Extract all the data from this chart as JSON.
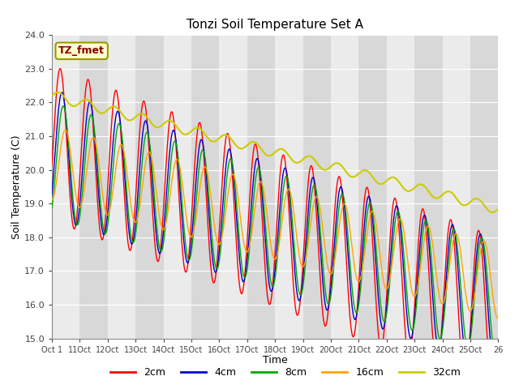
{
  "title": "Tonzi Soil Temperature Set A",
  "xlabel": "Time",
  "ylabel": "Soil Temperature (C)",
  "ylim": [
    15.0,
    24.0
  ],
  "yticks": [
    15.0,
    16.0,
    17.0,
    18.0,
    19.0,
    20.0,
    21.0,
    22.0,
    23.0,
    24.0
  ],
  "xtick_labels": [
    "Oct 1",
    "11Oct",
    "12Oct",
    "13Oct",
    "14Oct",
    "15Oct",
    "16Oct",
    "17Oct",
    "18Oct",
    "19Oct",
    "20Oct",
    "21Oct",
    "22Oct",
    "23Oct",
    "24Oct",
    "25Oct",
    "26"
  ],
  "annotation_text": "TZ_fmet",
  "annotation_color": "#8B0000",
  "annotation_bg": "#FFFFCC",
  "annotation_edge": "#999900",
  "fig_bg": "#FFFFFF",
  "plot_bg": "#FFFFFF",
  "band_light": "#EBEBEB",
  "band_dark": "#D8D8D8",
  "grid_color": "#FFFFFF",
  "colors": {
    "2cm": "#FF0000",
    "4cm": "#0000CC",
    "8cm": "#00AA00",
    "16cm": "#FFA500",
    "32cm": "#CCCC00"
  },
  "n_days": 16,
  "n_per_day": 48,
  "seed": 42
}
